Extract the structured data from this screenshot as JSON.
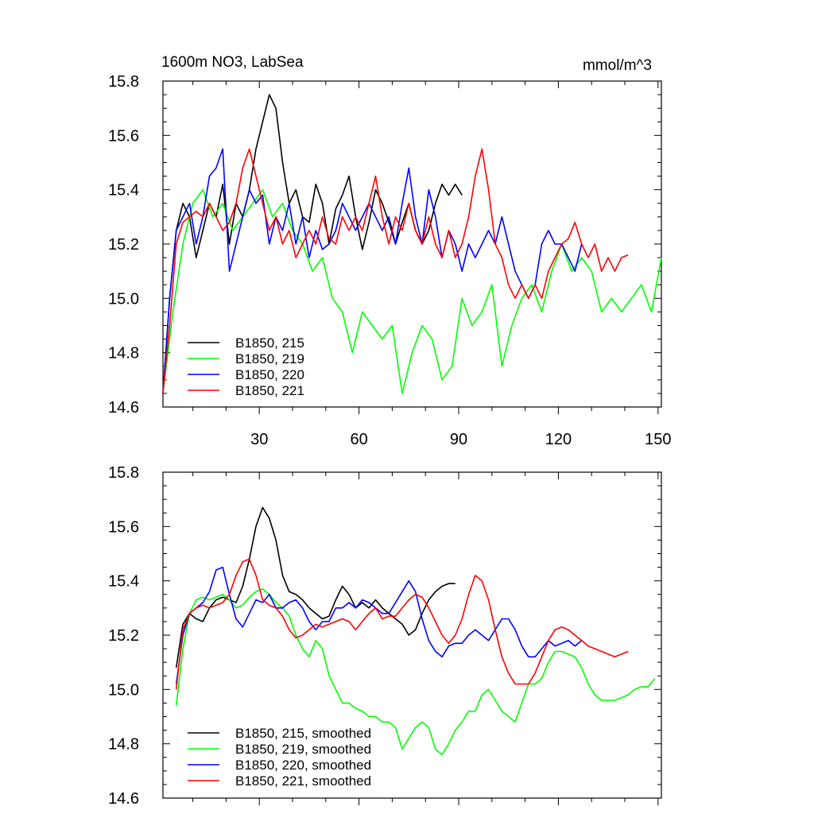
{
  "chart_data": [
    {
      "type": "line",
      "title": "1600m NO3, LabSea",
      "units": "mmol/m^3",
      "xlabel": "",
      "ylabel": "",
      "xlim": [
        1,
        151
      ],
      "ylim": [
        14.6,
        15.8
      ],
      "x_ticks": [
        30,
        60,
        90,
        120,
        150
      ],
      "x_tick_labels": [
        "30",
        "60",
        "90",
        "120",
        "150"
      ],
      "y_ticks": [
        14.6,
        14.8,
        15.0,
        15.2,
        15.4,
        15.6,
        15.8
      ],
      "y_tick_labels": [
        "14.6",
        "14.8",
        "15.0",
        "15.2",
        "15.4",
        "15.6",
        "15.8"
      ],
      "legend_position": "bottom-left",
      "series": [
        {
          "name": "B1850, 215",
          "color": "#000000",
          "x": [
            1,
            3,
            5,
            7,
            9,
            11,
            13,
            15,
            17,
            19,
            21,
            23,
            25,
            27,
            29,
            31,
            33,
            35,
            37,
            39,
            41,
            43,
            45,
            47,
            49,
            51,
            53,
            55,
            57,
            59,
            61,
            63,
            65,
            67,
            69,
            71,
            73,
            75,
            77,
            79,
            81,
            83,
            85,
            87,
            89,
            91
          ],
          "values": [
            14.65,
            15.0,
            15.25,
            15.35,
            15.3,
            15.15,
            15.25,
            15.35,
            15.3,
            15.42,
            15.2,
            15.35,
            15.3,
            15.4,
            15.55,
            15.65,
            15.75,
            15.7,
            15.5,
            15.35,
            15.4,
            15.3,
            15.28,
            15.42,
            15.35,
            15.2,
            15.33,
            15.38,
            15.45,
            15.3,
            15.18,
            15.28,
            15.4,
            15.35,
            15.28,
            15.2,
            15.28,
            15.35,
            15.25,
            15.2,
            15.25,
            15.35,
            15.42,
            15.38,
            15.42,
            15.38
          ]
        },
        {
          "name": "B1850, 219",
          "color": "#00ff00",
          "x": [
            1,
            4,
            7,
            10,
            13,
            16,
            19,
            22,
            25,
            28,
            31,
            34,
            37,
            40,
            43,
            46,
            49,
            52,
            55,
            58,
            61,
            64,
            67,
            70,
            73,
            76,
            79,
            82,
            85,
            88,
            91,
            94,
            97,
            100,
            103,
            106,
            109,
            112,
            115,
            118,
            121,
            124,
            127,
            130,
            133,
            136,
            139,
            142,
            145,
            148,
            151
          ],
          "values": [
            14.65,
            14.95,
            15.2,
            15.35,
            15.4,
            15.3,
            15.35,
            15.25,
            15.3,
            15.35,
            15.4,
            15.3,
            15.35,
            15.25,
            15.2,
            15.1,
            15.15,
            15.0,
            14.95,
            14.8,
            14.95,
            14.9,
            14.85,
            14.9,
            14.65,
            14.8,
            14.9,
            14.85,
            14.7,
            14.75,
            15.0,
            14.9,
            14.95,
            15.05,
            14.75,
            14.9,
            15.0,
            15.05,
            14.95,
            15.1,
            15.2,
            15.1,
            15.15,
            15.1,
            14.95,
            15.0,
            14.95,
            15.0,
            15.05,
            14.95,
            15.15
          ]
        },
        {
          "name": "B1850, 220",
          "color": "#0000ff",
          "x": [
            1,
            3,
            5,
            7,
            9,
            11,
            13,
            15,
            17,
            19,
            21,
            23,
            25,
            27,
            29,
            31,
            33,
            35,
            37,
            39,
            41,
            43,
            45,
            47,
            49,
            51,
            53,
            55,
            57,
            59,
            61,
            63,
            65,
            67,
            69,
            71,
            73,
            75,
            77,
            79,
            81,
            83,
            85,
            87,
            89,
            91,
            93,
            95,
            97,
            99,
            101,
            103,
            105,
            107,
            109,
            111,
            113,
            115,
            117,
            119,
            121,
            123,
            125,
            127
          ],
          "values": [
            14.65,
            15.0,
            15.25,
            15.3,
            15.35,
            15.2,
            15.3,
            15.45,
            15.48,
            15.55,
            15.1,
            15.2,
            15.3,
            15.4,
            15.35,
            15.38,
            15.2,
            15.3,
            15.25,
            15.35,
            15.2,
            15.3,
            15.15,
            15.25,
            15.18,
            15.2,
            15.25,
            15.35,
            15.3,
            15.25,
            15.3,
            15.35,
            15.3,
            15.25,
            15.3,
            15.2,
            15.35,
            15.48,
            15.3,
            15.2,
            15.4,
            15.3,
            15.15,
            15.25,
            15.2,
            15.1,
            15.2,
            15.15,
            15.2,
            15.25,
            15.2,
            15.3,
            15.2,
            15.1,
            15.05,
            15.0,
            15.05,
            15.2,
            15.25,
            15.2,
            15.2,
            15.15,
            15.1,
            15.2
          ]
        },
        {
          "name": "B1850, 221",
          "color": "#ff0000",
          "x": [
            1,
            3,
            5,
            7,
            9,
            11,
            13,
            15,
            17,
            19,
            21,
            23,
            25,
            27,
            29,
            31,
            33,
            35,
            37,
            39,
            41,
            43,
            45,
            47,
            49,
            51,
            53,
            55,
            57,
            59,
            61,
            63,
            65,
            67,
            69,
            71,
            73,
            75,
            77,
            79,
            81,
            83,
            85,
            87,
            89,
            91,
            93,
            95,
            97,
            99,
            101,
            103,
            105,
            107,
            109,
            111,
            113,
            115,
            117,
            119,
            121,
            123,
            125,
            127,
            129,
            131,
            133,
            135,
            137,
            139,
            141
          ],
          "values": [
            14.65,
            14.9,
            15.2,
            15.28,
            15.3,
            15.32,
            15.3,
            15.35,
            15.3,
            15.25,
            15.28,
            15.35,
            15.48,
            15.55,
            15.45,
            15.35,
            15.25,
            15.3,
            15.2,
            15.25,
            15.15,
            15.2,
            15.25,
            15.2,
            15.3,
            15.22,
            15.2,
            15.3,
            15.25,
            15.3,
            15.25,
            15.35,
            15.45,
            15.3,
            15.2,
            15.3,
            15.25,
            15.35,
            15.25,
            15.2,
            15.3,
            15.2,
            15.15,
            15.25,
            15.15,
            15.2,
            15.3,
            15.45,
            15.55,
            15.4,
            15.2,
            15.15,
            15.05,
            15.0,
            15.05,
            15.0,
            15.05,
            15.0,
            15.1,
            15.15,
            15.2,
            15.22,
            15.28,
            15.2,
            15.15,
            15.2,
            15.1,
            15.15,
            15.1,
            15.15,
            15.16
          ]
        }
      ]
    },
    {
      "type": "line",
      "title": "",
      "xlabel": "",
      "ylabel": "",
      "xlim": [
        1,
        151
      ],
      "ylim": [
        14.6,
        15.8
      ],
      "x_ticks": [
        30,
        60,
        90,
        120,
        150
      ],
      "y_ticks": [
        14.6,
        14.8,
        15.0,
        15.2,
        15.4,
        15.6,
        15.8
      ],
      "y_tick_labels": [
        "14.6",
        "14.8",
        "15.0",
        "15.2",
        "15.4",
        "15.6",
        "15.8"
      ],
      "legend_position": "bottom-left",
      "series": [
        {
          "name": "B1850, 215, smoothed",
          "color": "#000000",
          "x": [
            5,
            7,
            9,
            11,
            13,
            15,
            17,
            19,
            21,
            23,
            25,
            27,
            29,
            31,
            33,
            35,
            37,
            39,
            41,
            43,
            45,
            47,
            49,
            51,
            53,
            55,
            57,
            59,
            61,
            63,
            65,
            67,
            69,
            71,
            73,
            75,
            77,
            79,
            81,
            83,
            85,
            87,
            89
          ],
          "values": [
            15.08,
            15.24,
            15.28,
            15.26,
            15.25,
            15.3,
            15.33,
            15.34,
            15.33,
            15.32,
            15.38,
            15.48,
            15.6,
            15.67,
            15.63,
            15.55,
            15.42,
            15.36,
            15.35,
            15.33,
            15.3,
            15.28,
            15.26,
            15.27,
            15.33,
            15.38,
            15.35,
            15.3,
            15.32,
            15.3,
            15.33,
            15.3,
            15.28,
            15.26,
            15.24,
            15.2,
            15.22,
            15.28,
            15.33,
            15.36,
            15.38,
            15.39,
            15.39
          ]
        },
        {
          "name": "B1850, 219, smoothed",
          "color": "#00ff00",
          "x": [
            5,
            7,
            9,
            11,
            13,
            15,
            17,
            19,
            21,
            23,
            25,
            27,
            29,
            31,
            33,
            35,
            37,
            39,
            41,
            43,
            45,
            47,
            49,
            51,
            53,
            55,
            57,
            59,
            61,
            63,
            65,
            67,
            69,
            71,
            73,
            75,
            77,
            79,
            81,
            83,
            85,
            87,
            89,
            91,
            93,
            95,
            97,
            99,
            101,
            103,
            105,
            107,
            109,
            111,
            113,
            115,
            117,
            119,
            121,
            123,
            125,
            127,
            129,
            131,
            133,
            135,
            137,
            139,
            141,
            143,
            145,
            147,
            149
          ],
          "values": [
            14.94,
            15.15,
            15.28,
            15.33,
            15.34,
            15.33,
            15.34,
            15.35,
            15.33,
            15.3,
            15.31,
            15.34,
            15.36,
            15.37,
            15.35,
            15.32,
            15.3,
            15.27,
            15.2,
            15.15,
            15.12,
            15.18,
            15.15,
            15.05,
            15.0,
            14.95,
            14.95,
            14.93,
            14.92,
            14.9,
            14.9,
            14.88,
            14.88,
            14.86,
            14.78,
            14.82,
            14.86,
            14.88,
            14.86,
            14.78,
            14.76,
            14.8,
            14.85,
            14.88,
            14.92,
            14.92,
            14.98,
            15.0,
            14.96,
            14.92,
            14.9,
            14.88,
            14.95,
            15.02,
            15.02,
            15.04,
            15.1,
            15.14,
            15.14,
            15.13,
            15.12,
            15.08,
            15.02,
            14.98,
            14.96,
            14.96,
            14.96,
            14.97,
            14.98,
            15.0,
            15.01,
            15.01,
            15.04
          ]
        },
        {
          "name": "B1850, 220, smoothed",
          "color": "#0000ff",
          "x": [
            5,
            7,
            9,
            11,
            13,
            15,
            17,
            19,
            21,
            23,
            25,
            27,
            29,
            31,
            33,
            35,
            37,
            39,
            41,
            43,
            45,
            47,
            49,
            51,
            53,
            55,
            57,
            59,
            61,
            63,
            65,
            67,
            69,
            71,
            73,
            75,
            77,
            79,
            81,
            83,
            85,
            87,
            89,
            91,
            93,
            95,
            97,
            99,
            101,
            103,
            105,
            107,
            109,
            111,
            113,
            115,
            117,
            119,
            121,
            123,
            125,
            127
          ],
          "values": [
            15.02,
            15.2,
            15.28,
            15.3,
            15.32,
            15.36,
            15.44,
            15.45,
            15.35,
            15.26,
            15.23,
            15.28,
            15.33,
            15.32,
            15.35,
            15.3,
            15.3,
            15.32,
            15.33,
            15.3,
            15.25,
            15.22,
            15.25,
            15.25,
            15.3,
            15.3,
            15.32,
            15.3,
            15.33,
            15.32,
            15.3,
            15.28,
            15.28,
            15.32,
            15.36,
            15.4,
            15.36,
            15.26,
            15.18,
            15.14,
            15.12,
            15.16,
            15.17,
            15.17,
            15.2,
            15.22,
            15.2,
            15.18,
            15.22,
            15.26,
            15.26,
            15.22,
            15.16,
            15.12,
            15.12,
            15.15,
            15.18,
            15.16,
            15.17,
            15.18,
            15.16,
            15.18
          ]
        },
        {
          "name": "B1850, 221, smoothed",
          "color": "#ff0000",
          "x": [
            5,
            7,
            9,
            11,
            13,
            15,
            17,
            19,
            21,
            23,
            25,
            27,
            29,
            31,
            33,
            35,
            37,
            39,
            41,
            43,
            45,
            47,
            49,
            51,
            53,
            55,
            57,
            59,
            61,
            63,
            65,
            67,
            69,
            71,
            73,
            75,
            77,
            79,
            81,
            83,
            85,
            87,
            89,
            91,
            93,
            95,
            97,
            99,
            101,
            103,
            105,
            107,
            109,
            111,
            113,
            115,
            117,
            119,
            121,
            123,
            125,
            127,
            129,
            131,
            133,
            135,
            137,
            139,
            141
          ],
          "values": [
            15.0,
            15.22,
            15.28,
            15.3,
            15.31,
            15.3,
            15.31,
            15.32,
            15.35,
            15.42,
            15.47,
            15.48,
            15.42,
            15.33,
            15.31,
            15.3,
            15.27,
            15.22,
            15.19,
            15.2,
            15.22,
            15.24,
            15.23,
            15.24,
            15.25,
            15.26,
            15.25,
            15.22,
            15.25,
            15.28,
            15.3,
            15.26,
            15.27,
            15.27,
            15.3,
            15.33,
            15.35,
            15.34,
            15.3,
            15.25,
            15.2,
            15.17,
            15.2,
            15.26,
            15.35,
            15.42,
            15.4,
            15.33,
            15.22,
            15.12,
            15.06,
            15.02,
            15.02,
            15.02,
            15.06,
            15.12,
            15.18,
            15.22,
            15.23,
            15.22,
            15.2,
            15.18,
            15.16,
            15.15,
            15.14,
            15.13,
            15.12,
            15.13,
            15.14
          ]
        }
      ]
    }
  ]
}
